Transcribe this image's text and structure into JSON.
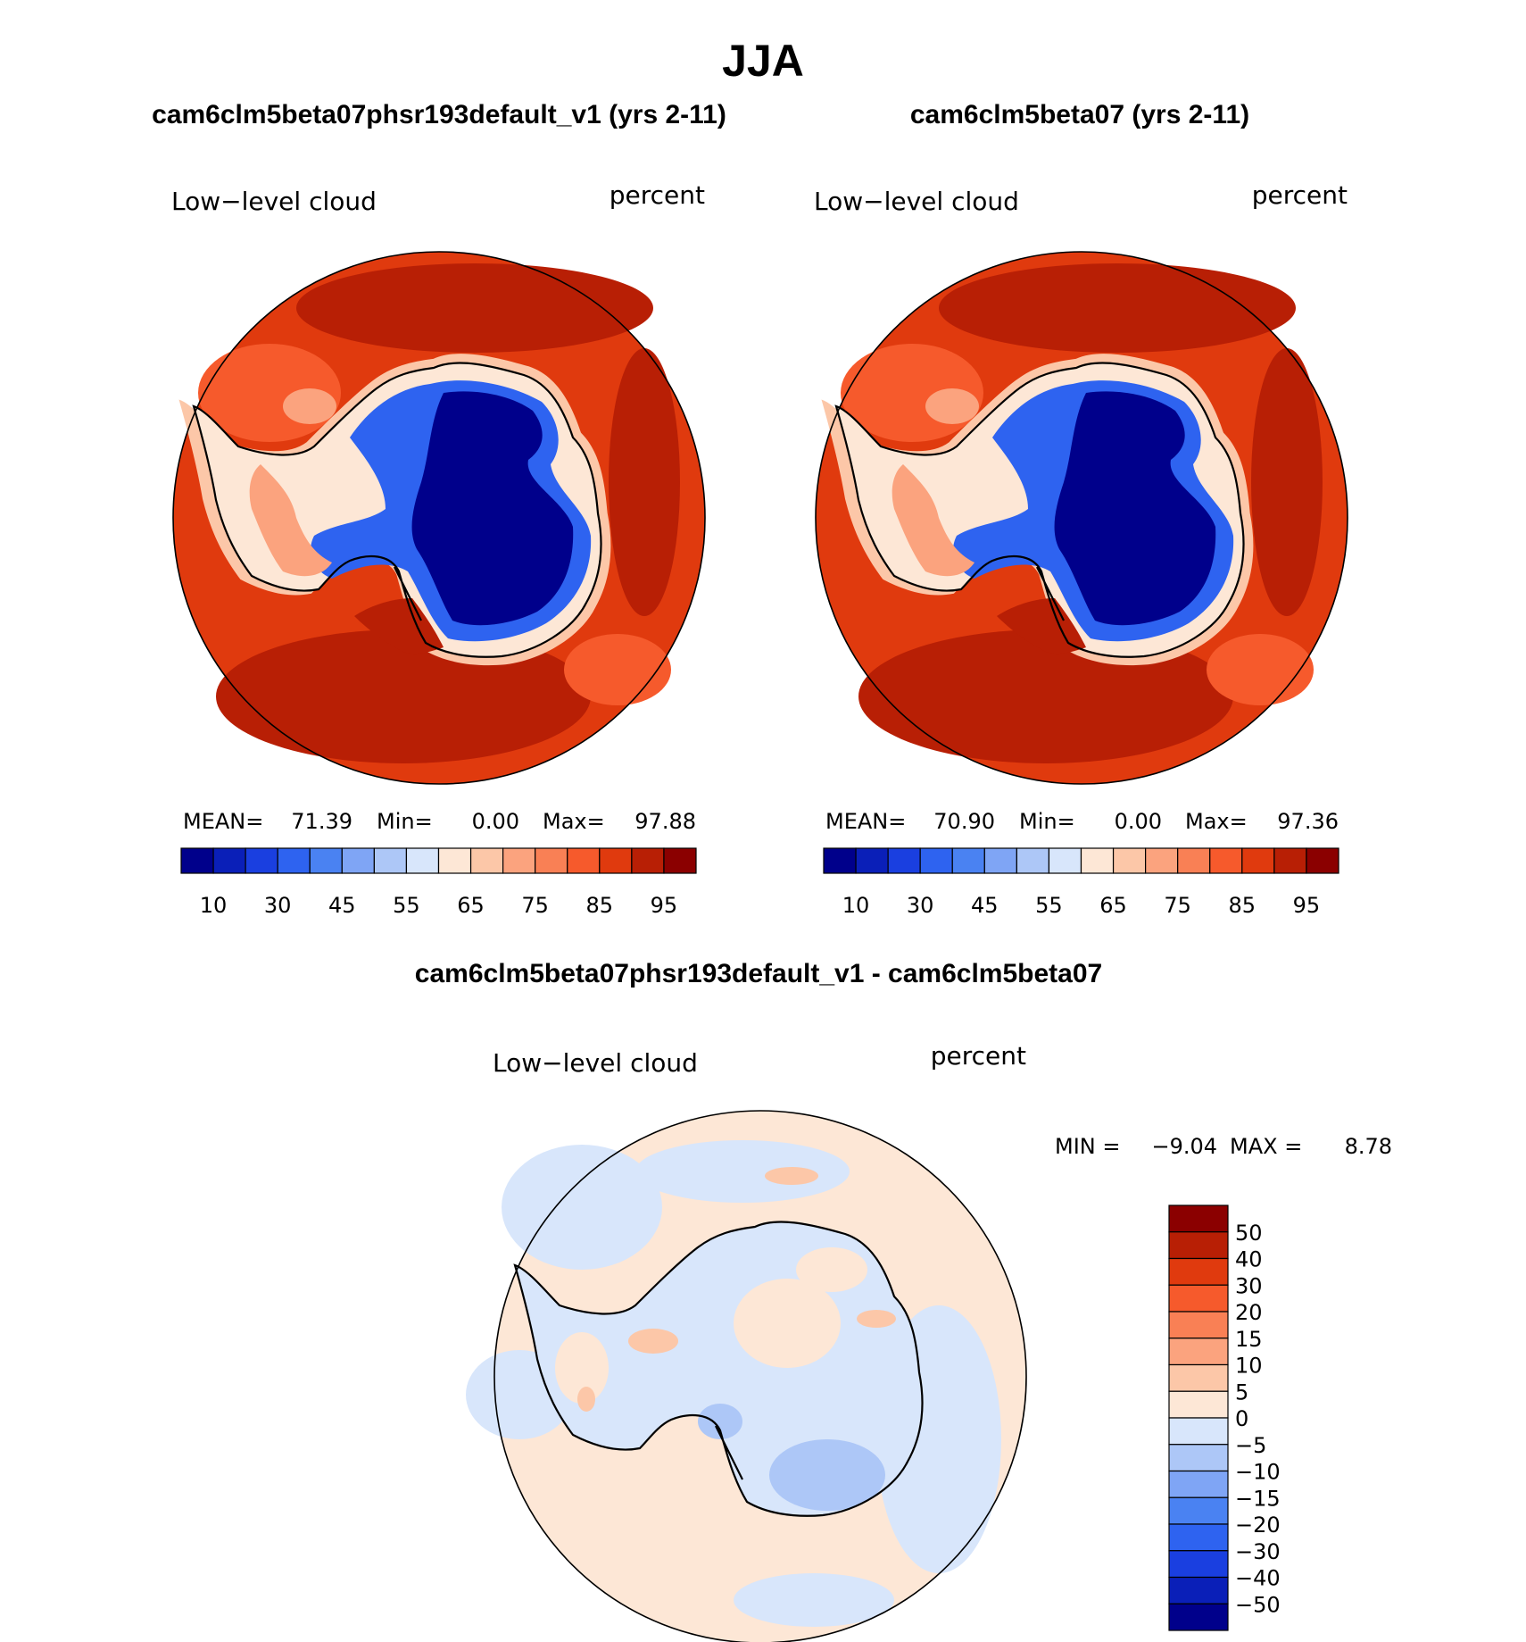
{
  "title": "JJA",
  "colors": {
    "seq": [
      "#00008b",
      "#0a1fb8",
      "#1a3fe0",
      "#2e63f0",
      "#4a82f2",
      "#7fa5f5",
      "#adc7f7",
      "#d8e6fb",
      "#fde7d6",
      "#fcc7a8",
      "#fba37e",
      "#f98055",
      "#f65a2c",
      "#e03a0e",
      "#b81f05",
      "#8b0000"
    ],
    "div": [
      "#00008b",
      "#0a1fb8",
      "#1a3fe0",
      "#2e63f0",
      "#4a82f2",
      "#7fa5f5",
      "#adc7f7",
      "#d8e6fb",
      "#fde7d6",
      "#fcc7a8",
      "#fba37e",
      "#f98055",
      "#f65a2c",
      "#e03a0e",
      "#b81f05",
      "#8b0000"
    ]
  },
  "chart_data": [
    {
      "type": "heatmap",
      "projection": "south-polar-stereographic",
      "case_title": "cam6clm5beta07phsr193default_v1 (yrs 2-11)",
      "variable": "Low−level cloud",
      "units": "percent",
      "stats": {
        "mean_label": "MEAN=",
        "mean": "71.39",
        "min_label": "Min=",
        "min": "0.00",
        "max_label": "Max=",
        "max": "97.88"
      },
      "colorbar": {
        "orientation": "horizontal",
        "levels": [
          10,
          20,
          30,
          40,
          45,
          50,
          55,
          60,
          65,
          70,
          75,
          80,
          85,
          90,
          95
        ],
        "tick_labels": [
          "10",
          "30",
          "45",
          "55",
          "65",
          "75",
          "85",
          "95"
        ]
      }
    },
    {
      "type": "heatmap",
      "projection": "south-polar-stereographic",
      "case_title": "cam6clm5beta07 (yrs 2-11)",
      "variable": "Low−level cloud",
      "units": "percent",
      "stats": {
        "mean_label": "MEAN=",
        "mean": "70.90",
        "min_label": "Min=",
        "min": "0.00",
        "max_label": "Max=",
        "max": "97.36"
      },
      "colorbar": {
        "orientation": "horizontal",
        "levels": [
          10,
          20,
          30,
          40,
          45,
          50,
          55,
          60,
          65,
          70,
          75,
          80,
          85,
          90,
          95
        ],
        "tick_labels": [
          "10",
          "30",
          "45",
          "55",
          "65",
          "75",
          "85",
          "95"
        ]
      }
    },
    {
      "type": "heatmap",
      "projection": "south-polar-stereographic",
      "case_title": "cam6clm5beta07phsr193default_v1 - cam6clm5beta07",
      "variable": "Low−level cloud",
      "units": "percent",
      "stats": {
        "min_label": "MIN =",
        "min": "−9.04",
        "max_label": "MAX =",
        "max": "8.78"
      },
      "colorbar": {
        "orientation": "vertical",
        "levels": [
          -50,
          -40,
          -30,
          -20,
          -15,
          -10,
          -5,
          0,
          5,
          10,
          15,
          20,
          30,
          40,
          50
        ],
        "tick_labels": [
          "50",
          "40",
          "30",
          "20",
          "15",
          "10",
          "5",
          "0",
          "−5",
          "−10",
          "−15",
          "−20",
          "−30",
          "−40",
          "−50"
        ]
      }
    }
  ]
}
